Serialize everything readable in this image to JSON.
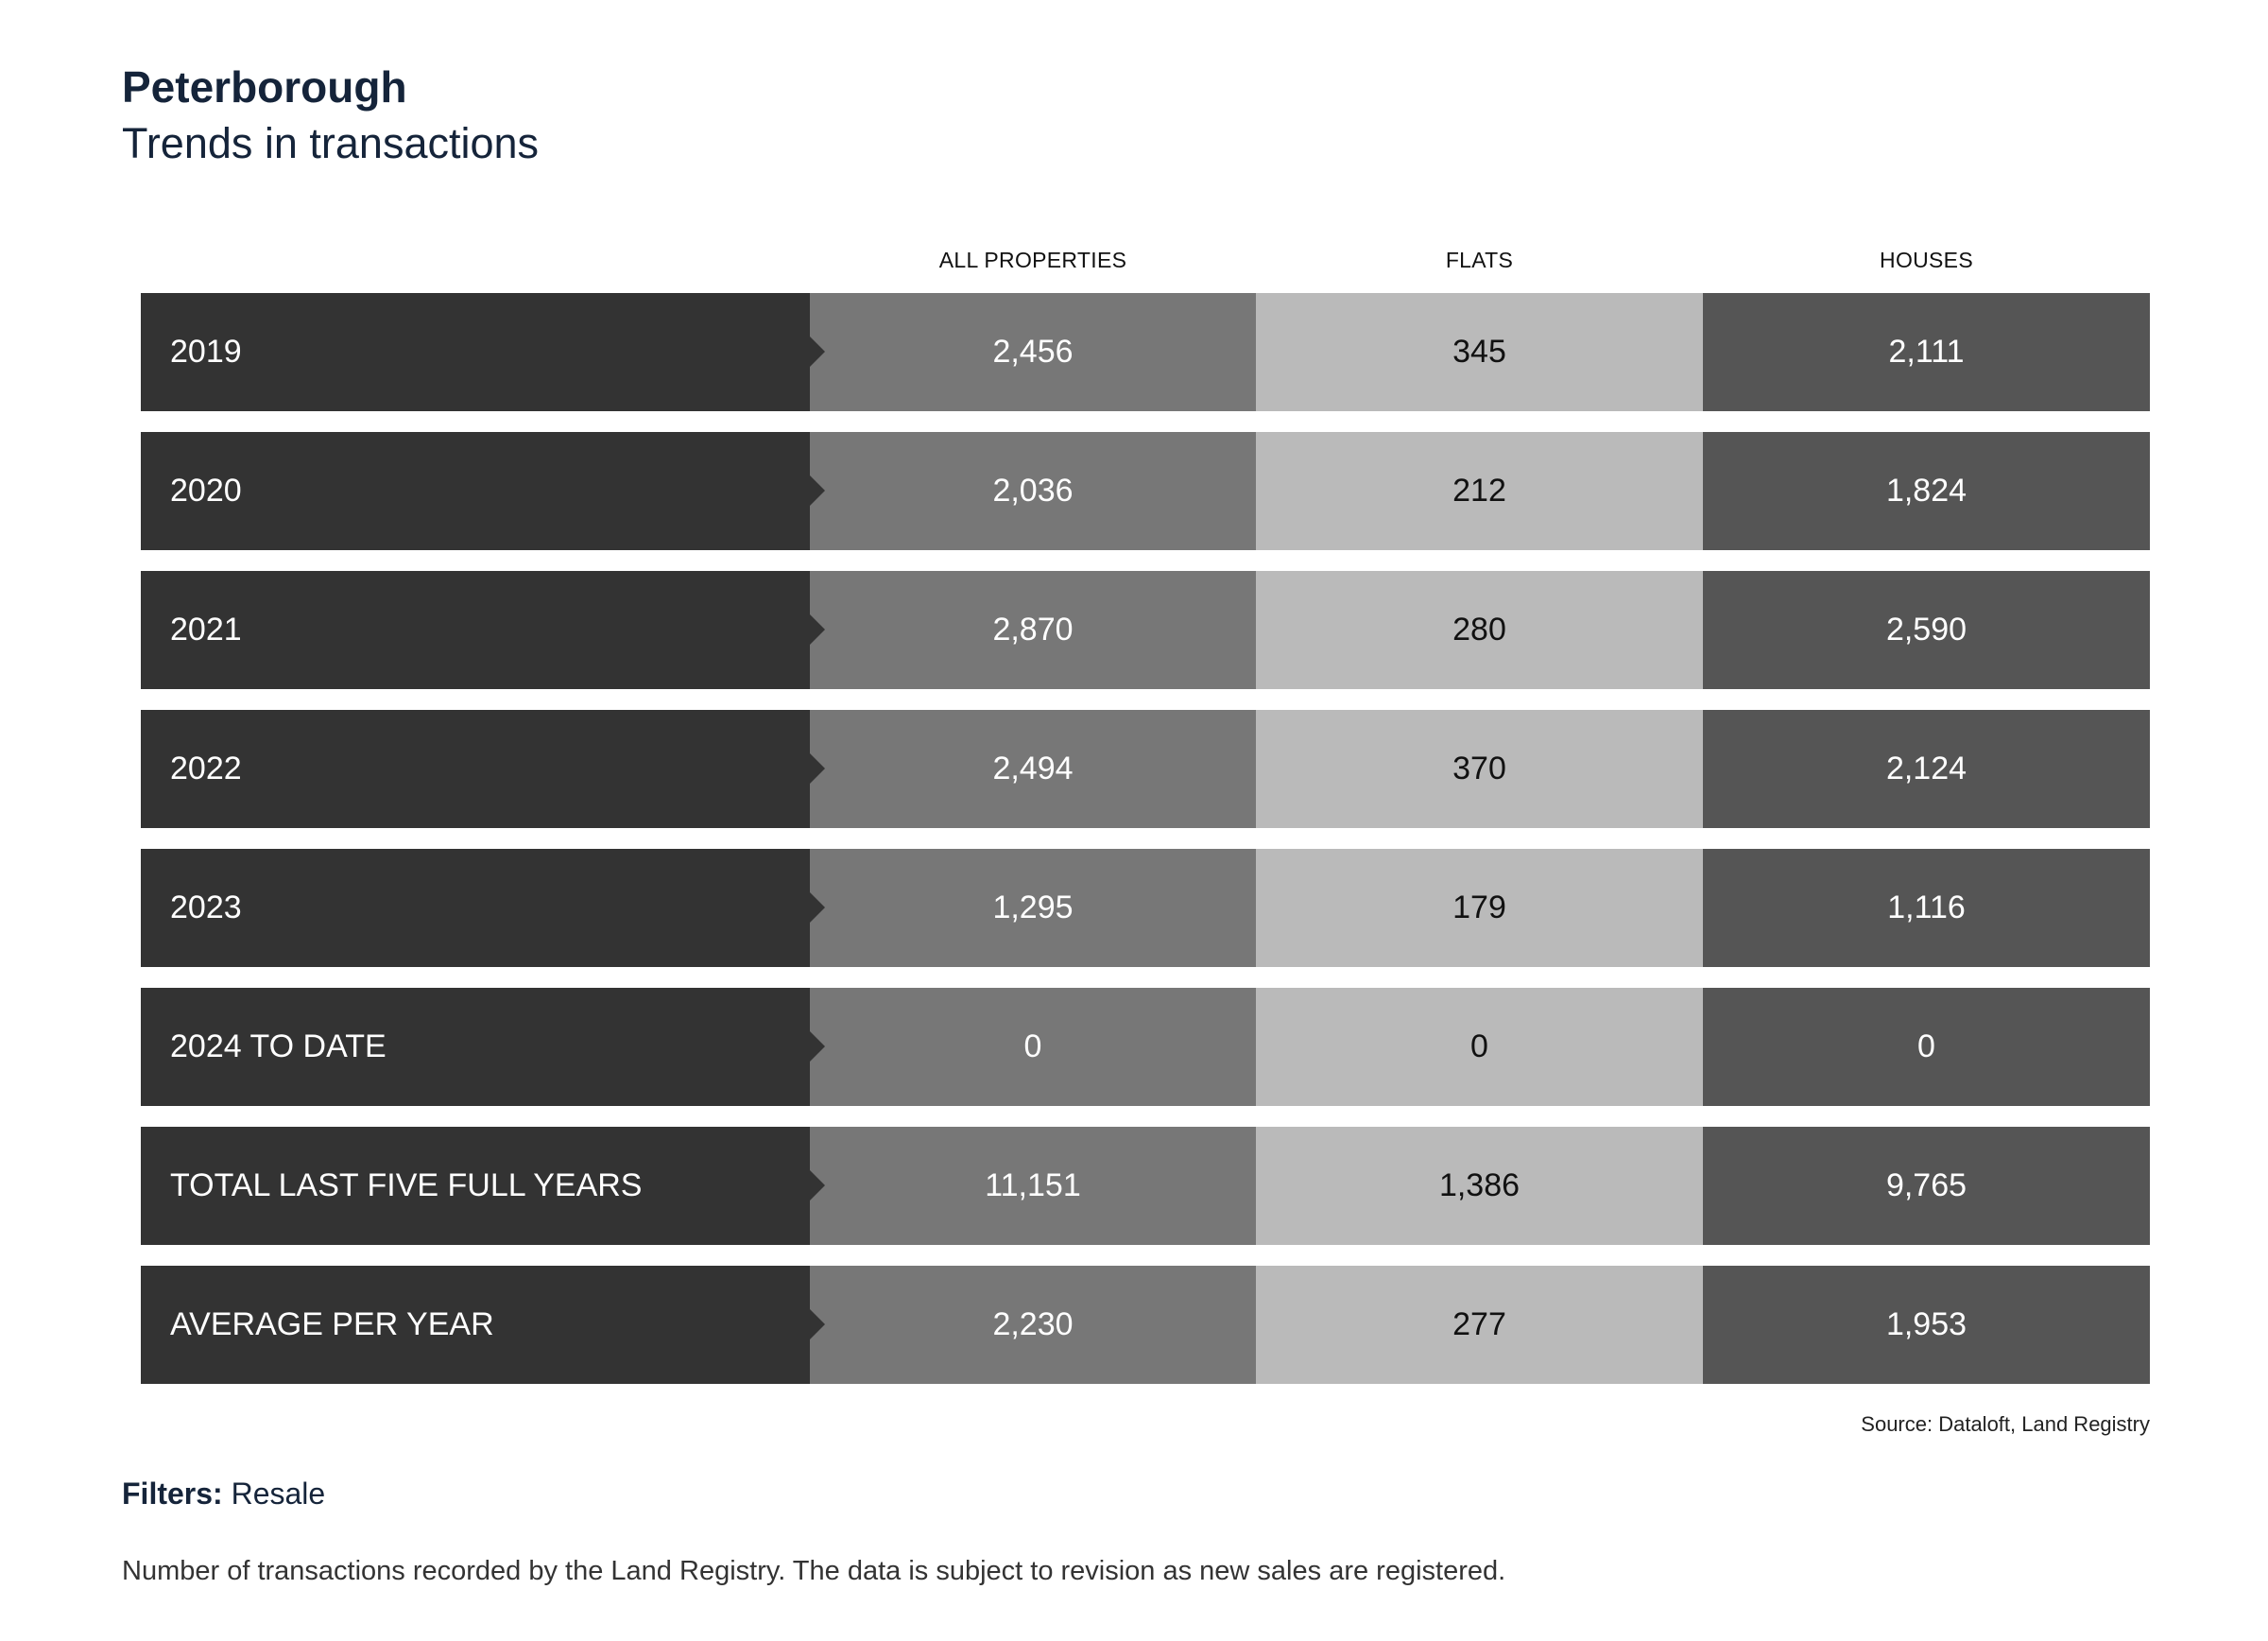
{
  "header": {
    "title": "Peterborough",
    "subtitle": "Trends in transactions"
  },
  "table": {
    "columns": [
      "ALL PROPERTIES",
      "FLATS",
      "HOUSES"
    ],
    "rows": [
      {
        "label": "2019",
        "all": "2,456",
        "flats": "345",
        "houses": "2,111"
      },
      {
        "label": "2020",
        "all": "2,036",
        "flats": "212",
        "houses": "1,824"
      },
      {
        "label": "2021",
        "all": "2,870",
        "flats": "280",
        "houses": "2,590"
      },
      {
        "label": "2022",
        "all": "2,494",
        "flats": "370",
        "houses": "2,124"
      },
      {
        "label": "2023",
        "all": "1,295",
        "flats": "179",
        "houses": "1,116"
      },
      {
        "label": "2024 TO DATE",
        "all": "0",
        "flats": "0",
        "houses": "0"
      },
      {
        "label": "TOTAL LAST FIVE FULL YEARS",
        "all": "11,151",
        "flats": "1,386",
        "houses": "9,765"
      },
      {
        "label": "AVERAGE PER YEAR",
        "all": "2,230",
        "flats": "277",
        "houses": "1,953"
      }
    ]
  },
  "source": "Source: Dataloft, Land Registry",
  "filters": {
    "label": "Filters:",
    "value": "Resale"
  },
  "note": "Number of transactions recorded by the Land Registry. The data is subject to revision as new sales are registered.",
  "colors": {
    "label_bg": "#333333",
    "all_bg": "#777777",
    "flats_bg": "#bababa",
    "houses_bg": "#555555"
  }
}
